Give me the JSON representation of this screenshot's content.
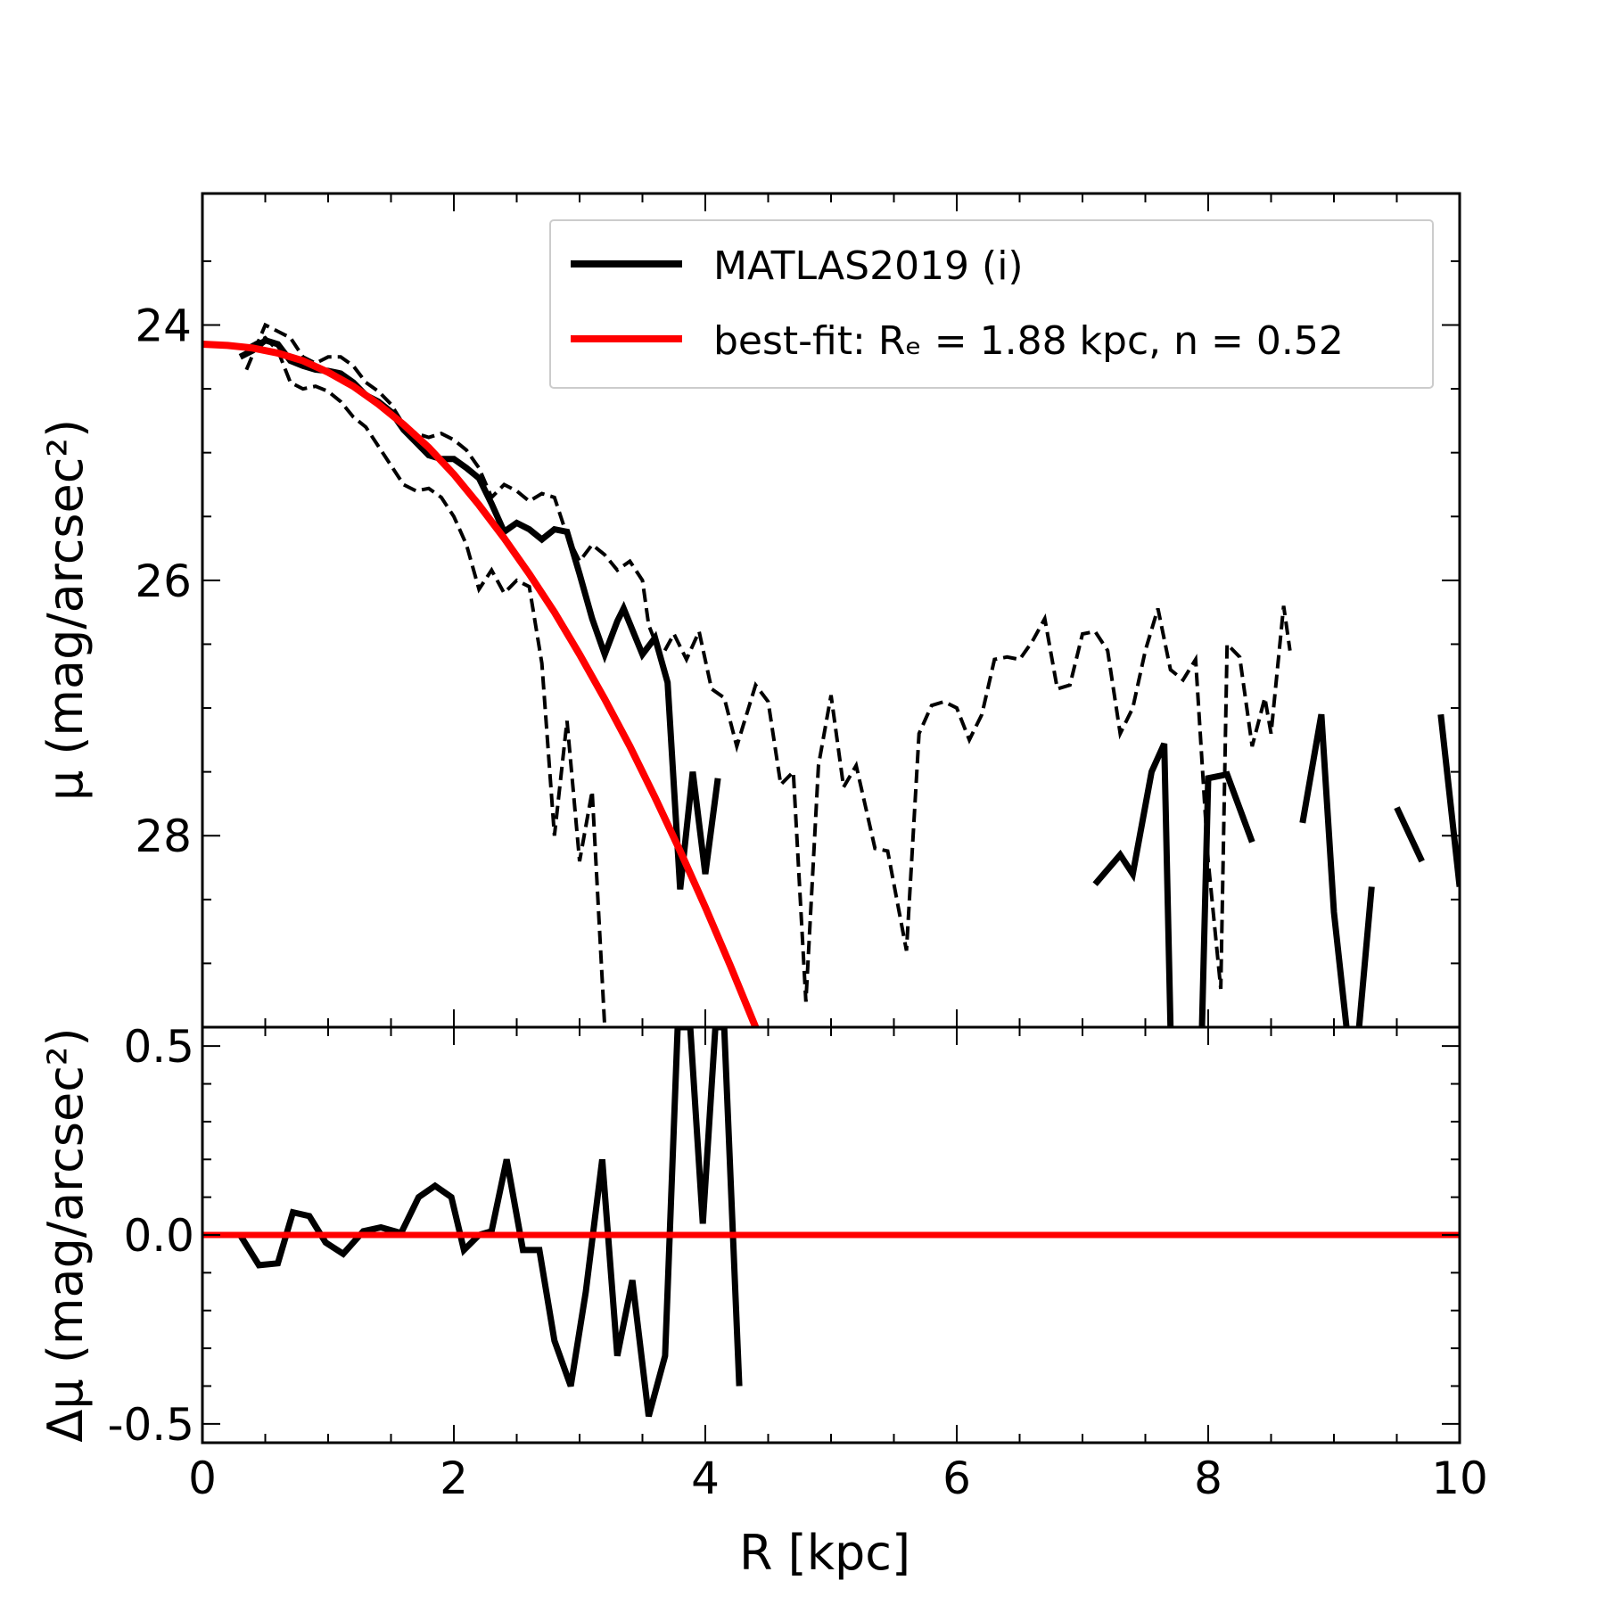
{
  "chart_data": [
    {
      "type": "line",
      "panel": "top",
      "xlim": [
        0,
        10
      ],
      "ylim": [
        29.5,
        22.97
      ],
      "ylabel": "μ (mag/arcsec²)",
      "xticks": [
        0,
        2,
        4,
        6,
        8,
        10
      ],
      "yticks": [
        24,
        26,
        28
      ],
      "grid": false,
      "legend_position": "top-right",
      "legend": [
        "MATLAS2019 (i)",
        "best-fit: Rₑ = 1.88 kpc, n = 0.52"
      ],
      "series": [
        {
          "name": "MATLAS2019 (i)",
          "color": "#000000",
          "style": "solid",
          "segments": [
            [
              [
                0.3,
                24.25
              ],
              [
                0.4,
                24.2
              ],
              [
                0.5,
                24.12
              ],
              [
                0.6,
                24.15
              ],
              [
                0.7,
                24.28
              ],
              [
                0.8,
                24.32
              ],
              [
                0.9,
                24.35
              ],
              [
                1.0,
                24.36
              ],
              [
                1.1,
                24.38
              ],
              [
                1.2,
                24.45
              ],
              [
                1.3,
                24.55
              ],
              [
                1.4,
                24.6
              ],
              [
                1.5,
                24.68
              ],
              [
                1.6,
                24.82
              ],
              [
                1.7,
                24.92
              ],
              [
                1.8,
                25.02
              ],
              [
                1.9,
                25.05
              ],
              [
                2.0,
                25.05
              ],
              [
                2.1,
                25.12
              ],
              [
                2.2,
                25.2
              ],
              [
                2.3,
                25.4
              ],
              [
                2.4,
                25.62
              ],
              [
                2.5,
                25.55
              ],
              [
                2.6,
                25.6
              ],
              [
                2.7,
                25.68
              ],
              [
                2.8,
                25.6
              ],
              [
                2.9,
                25.62
              ],
              [
                3.0,
                25.95
              ],
              [
                3.1,
                26.3
              ],
              [
                3.2,
                26.58
              ],
              [
                3.3,
                26.32
              ],
              [
                3.35,
                26.22
              ],
              [
                3.5,
                26.58
              ],
              [
                3.6,
                26.45
              ],
              [
                3.7,
                26.8
              ],
              [
                3.8,
                28.42
              ],
              [
                3.9,
                27.5
              ],
              [
                4.0,
                28.3
              ],
              [
                4.1,
                27.55
              ]
            ],
            [
              [
                7.1,
                28.38
              ],
              [
                7.3,
                28.15
              ],
              [
                7.4,
                28.3
              ],
              [
                7.55,
                27.5
              ],
              [
                7.65,
                27.28
              ],
              [
                7.7,
                29.5
              ]
            ],
            [
              [
                7.95,
                29.5
              ],
              [
                8.0,
                27.55
              ],
              [
                8.15,
                27.52
              ],
              [
                8.35,
                28.05
              ]
            ],
            [
              [
                8.75,
                27.9
              ],
              [
                8.9,
                27.05
              ],
              [
                9.0,
                28.6
              ],
              [
                9.1,
                29.5
              ]
            ],
            [
              [
                9.2,
                29.5
              ],
              [
                9.3,
                28.4
              ]
            ],
            [
              [
                9.5,
                27.78
              ],
              [
                9.7,
                28.2
              ]
            ],
            [
              [
                9.85,
                27.05
              ],
              [
                10.0,
                28.4
              ]
            ]
          ]
        },
        {
          "name": "",
          "color": "#000000",
          "style": "dashed",
          "segments": [
            [
              [
                0.35,
                24.35
              ],
              [
                0.5,
                24.0
              ],
              [
                0.6,
                24.05
              ],
              [
                0.7,
                24.1
              ],
              [
                0.8,
                24.25
              ],
              [
                0.9,
                24.3
              ],
              [
                1.0,
                24.25
              ],
              [
                1.1,
                24.25
              ],
              [
                1.2,
                24.32
              ],
              [
                1.3,
                24.45
              ],
              [
                1.4,
                24.52
              ],
              [
                1.5,
                24.62
              ],
              [
                1.6,
                24.78
              ],
              [
                1.7,
                24.85
              ],
              [
                1.8,
                24.88
              ],
              [
                1.9,
                24.85
              ],
              [
                2.0,
                24.9
              ],
              [
                2.1,
                24.98
              ],
              [
                2.2,
                25.12
              ],
              [
                2.3,
                25.35
              ],
              [
                2.4,
                25.25
              ],
              [
                2.5,
                25.3
              ],
              [
                2.6,
                25.38
              ],
              [
                2.7,
                25.32
              ],
              [
                2.8,
                25.35
              ],
              [
                2.9,
                25.65
              ],
              [
                3.0,
                25.85
              ],
              [
                3.1,
                25.72
              ],
              [
                3.2,
                25.8
              ],
              [
                3.3,
                25.92
              ],
              [
                3.4,
                25.85
              ],
              [
                3.5,
                26.0
              ],
              [
                3.55,
                26.35
              ],
              [
                3.65,
                26.6
              ],
              [
                3.75,
                26.42
              ],
              [
                3.85,
                26.62
              ],
              [
                3.95,
                26.4
              ],
              [
                4.05,
                26.85
              ],
              [
                4.15,
                26.92
              ],
              [
                4.25,
                27.3
              ],
              [
                4.4,
                26.82
              ],
              [
                4.5,
                26.95
              ],
              [
                4.6,
                27.6
              ],
              [
                4.7,
                27.5
              ],
              [
                4.8,
                29.3
              ],
              [
                4.9,
                27.45
              ],
              [
                5.0,
                26.9
              ],
              [
                5.1,
                27.62
              ],
              [
                5.2,
                27.45
              ],
              [
                5.35,
                28.1
              ],
              [
                5.45,
                28.12
              ],
              [
                5.6,
                28.9
              ],
              [
                5.7,
                27.2
              ],
              [
                5.8,
                26.98
              ],
              [
                5.9,
                26.95
              ],
              [
                6.0,
                27.0
              ],
              [
                6.1,
                27.25
              ],
              [
                6.2,
                27.05
              ],
              [
                6.3,
                26.62
              ],
              [
                6.4,
                26.6
              ],
              [
                6.5,
                26.62
              ],
              [
                6.6,
                26.48
              ],
              [
                6.7,
                26.3
              ],
              [
                6.8,
                26.85
              ],
              [
                6.9,
                26.82
              ],
              [
                7.0,
                26.42
              ],
              [
                7.1,
                26.4
              ],
              [
                7.2,
                26.55
              ],
              [
                7.3,
                27.2
              ],
              [
                7.4,
                27.0
              ],
              [
                7.5,
                26.55
              ],
              [
                7.6,
                26.22
              ],
              [
                7.7,
                26.7
              ],
              [
                7.8,
                26.78
              ],
              [
                7.9,
                26.62
              ],
              [
                8.0,
                28.2
              ],
              [
                8.1,
                29.2
              ],
              [
                8.15,
                26.5
              ],
              [
                8.25,
                26.6
              ],
              [
                8.35,
                27.3
              ],
              [
                8.45,
                26.92
              ],
              [
                8.5,
                27.2
              ],
              [
                8.6,
                26.2
              ],
              [
                8.65,
                26.55
              ]
            ],
            [
              [
                0.35,
                24.18
              ],
              [
                0.5,
                24.1
              ],
              [
                0.6,
                24.2
              ],
              [
                0.7,
                24.45
              ],
              [
                0.8,
                24.5
              ],
              [
                0.9,
                24.48
              ],
              [
                1.0,
                24.52
              ],
              [
                1.1,
                24.6
              ],
              [
                1.2,
                24.72
              ],
              [
                1.3,
                24.8
              ],
              [
                1.4,
                24.95
              ],
              [
                1.5,
                25.1
              ],
              [
                1.6,
                25.25
              ],
              [
                1.7,
                25.3
              ],
              [
                1.8,
                25.28
              ],
              [
                1.9,
                25.35
              ],
              [
                2.0,
                25.5
              ],
              [
                2.1,
                25.72
              ],
              [
                2.2,
                26.07
              ],
              [
                2.3,
                25.92
              ],
              [
                2.4,
                26.1
              ],
              [
                2.5,
                26.0
              ],
              [
                2.6,
                26.05
              ],
              [
                2.7,
                26.65
              ],
              [
                2.8,
                28.0
              ],
              [
                2.9,
                27.1
              ],
              [
                3.0,
                28.2
              ],
              [
                3.1,
                27.65
              ],
              [
                3.2,
                29.5
              ]
            ]
          ]
        },
        {
          "name": "best-fit: Rₑ = 1.88 kpc, n = 0.52",
          "color": "#ff0000",
          "style": "solid",
          "points": [
            [
              0.0,
              24.15
            ],
            [
              0.2,
              24.16
            ],
            [
              0.4,
              24.18
            ],
            [
              0.6,
              24.22
            ],
            [
              0.8,
              24.28
            ],
            [
              1.0,
              24.37
            ],
            [
              1.2,
              24.48
            ],
            [
              1.4,
              24.62
            ],
            [
              1.6,
              24.78
            ],
            [
              1.8,
              24.96
            ],
            [
              2.0,
              25.17
            ],
            [
              2.2,
              25.41
            ],
            [
              2.4,
              25.67
            ],
            [
              2.6,
              25.95
            ],
            [
              2.8,
              26.25
            ],
            [
              3.0,
              26.58
            ],
            [
              3.2,
              26.93
            ],
            [
              3.4,
              27.3
            ],
            [
              3.6,
              27.7
            ],
            [
              3.8,
              28.12
            ],
            [
              4.0,
              28.56
            ],
            [
              4.2,
              29.02
            ],
            [
              4.4,
              29.5
            ]
          ]
        }
      ]
    },
    {
      "type": "line",
      "panel": "bottom",
      "xlim": [
        0,
        10
      ],
      "ylim": [
        -0.55,
        0.55
      ],
      "xlabel": "R [kpc]",
      "ylabel": "Δμ (mag/arcsec²)",
      "xticks": [
        0,
        2,
        4,
        6,
        8,
        10
      ],
      "yticks": [
        0.5,
        0.0,
        -0.5
      ],
      "ytick_labels": [
        "0.5",
        "0.0",
        "-0.5"
      ],
      "series": [
        {
          "name": "",
          "color": "#000000",
          "style": "solid",
          "points": [
            [
              0.3,
              0.0
            ],
            [
              0.45,
              -0.08
            ],
            [
              0.6,
              -0.075
            ],
            [
              0.72,
              0.06
            ],
            [
              0.85,
              0.05
            ],
            [
              0.98,
              -0.02
            ],
            [
              1.12,
              -0.05
            ],
            [
              1.28,
              0.01
            ],
            [
              1.42,
              0.02
            ],
            [
              1.58,
              0.005
            ],
            [
              1.72,
              0.1
            ],
            [
              1.85,
              0.13
            ],
            [
              1.98,
              0.1
            ],
            [
              2.08,
              -0.04
            ],
            [
              2.2,
              0.0
            ],
            [
              2.3,
              0.01
            ],
            [
              2.42,
              0.2
            ],
            [
              2.55,
              -0.04
            ],
            [
              2.68,
              -0.04
            ],
            [
              2.8,
              -0.28
            ],
            [
              2.93,
              -0.4
            ],
            [
              3.05,
              -0.15
            ],
            [
              3.18,
              0.2
            ],
            [
              3.3,
              -0.32
            ],
            [
              3.42,
              -0.12
            ],
            [
              3.55,
              -0.48
            ],
            [
              3.68,
              -0.32
            ],
            [
              3.78,
              0.55
            ],
            [
              3.88,
              0.55
            ],
            [
              3.98,
              0.03
            ],
            [
              4.08,
              0.55
            ],
            [
              4.15,
              0.55
            ],
            [
              4.27,
              -0.4
            ]
          ]
        },
        {
          "name": "",
          "color": "#ff0000",
          "style": "solid",
          "points": [
            [
              0.0,
              0.0
            ],
            [
              10.0,
              0.0
            ]
          ]
        }
      ]
    }
  ],
  "labels": {
    "x_axis": "R [kpc]",
    "top_y_axis": "μ (mag/arcsec²)",
    "bottom_y_axis": "Δμ (mag/arcsec²)"
  },
  "colors": {
    "data": "#000000",
    "fit": "#ff0000",
    "legend_frame": "#cccccc"
  }
}
